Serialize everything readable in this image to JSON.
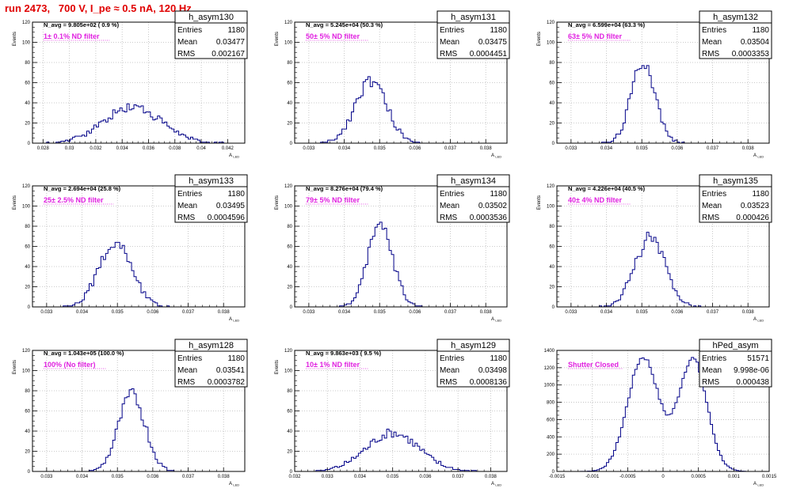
{
  "page_title": "run 2473,   700 V, I_pe ≈ 0.5 nA, 120 Hz",
  "colors": {
    "title": "#e00000",
    "histogram": "#000088",
    "annotation": "#e020e0",
    "grid": "#bbbbbb"
  },
  "chart_data": [
    {
      "type": "histogram",
      "stats": {
        "name": "h_asym130",
        "entries": "1180",
        "mean": "0.03477",
        "rms": "0.002167"
      },
      "navg": "N_avg = 9.805e+02 ( 0.9 %)",
      "filter": "1± 0.1% ND filter",
      "ylabel": "Events",
      "xlabel": "A_LED",
      "xlim": [
        0.0272,
        0.0433
      ],
      "ylim": [
        0,
        120
      ],
      "xticks": [
        0.028,
        0.03,
        0.032,
        0.034,
        0.036,
        0.038,
        0.04,
        0.042
      ],
      "xtick_labels": [
        "0.028",
        "0.03",
        "0.032",
        "0.034",
        "0.036",
        "0.038",
        "0.04",
        "0.042"
      ],
      "yticks": [
        0,
        20,
        40,
        60,
        80,
        100,
        120
      ],
      "ytick_labels": [
        "0",
        "20",
        "40",
        "60",
        "80",
        "100",
        "120"
      ],
      "peaks": [
        {
          "mu": 0.0348,
          "sigma": 0.00217,
          "amp": 36
        }
      ],
      "noise_seed": 130
    },
    {
      "type": "histogram",
      "stats": {
        "name": "h_asym131",
        "entries": "1180",
        "mean": "0.03475",
        "rms": "0.0004451"
      },
      "navg": "N_avg = 5.245e+04 (50.3 %)",
      "filter": "50± 5% ND filter",
      "ylabel": "Events",
      "xlabel": "A_LED",
      "xlim": [
        0.0326,
        0.0386
      ],
      "ylim": [
        0,
        120
      ],
      "xticks": [
        0.033,
        0.034,
        0.035,
        0.036,
        0.037,
        0.038
      ],
      "xtick_labels": [
        "0.033",
        "0.034",
        "0.035",
        "0.036",
        "0.037",
        "0.038"
      ],
      "yticks": [
        0,
        20,
        40,
        60,
        80,
        100,
        120
      ],
      "ytick_labels": [
        "0",
        "20",
        "40",
        "60",
        "80",
        "100",
        "120"
      ],
      "peaks": [
        {
          "mu": 0.03475,
          "sigma": 0.000445,
          "amp": 62
        }
      ],
      "noise_seed": 131
    },
    {
      "type": "histogram",
      "stats": {
        "name": "h_asym132",
        "entries": "1180",
        "mean": "0.03504",
        "rms": "0.0003353"
      },
      "navg": "N_avg = 6.599e+04 (63.3 %)",
      "filter": "63± 5% ND filter",
      "ylabel": "Events",
      "xlabel": "A_LED",
      "xlim": [
        0.0326,
        0.0386
      ],
      "ylim": [
        0,
        120
      ],
      "xticks": [
        0.033,
        0.034,
        0.035,
        0.036,
        0.037,
        0.038
      ],
      "xtick_labels": [
        "0.033",
        "0.034",
        "0.035",
        "0.036",
        "0.037",
        "0.038"
      ],
      "yticks": [
        0,
        20,
        40,
        60,
        80,
        100,
        120
      ],
      "ytick_labels": [
        "0",
        "20",
        "40",
        "60",
        "80",
        "100",
        "120"
      ],
      "peaks": [
        {
          "mu": 0.03504,
          "sigma": 0.000335,
          "amp": 82
        }
      ],
      "noise_seed": 132
    },
    {
      "type": "histogram",
      "stats": {
        "name": "h_asym133",
        "entries": "1180",
        "mean": "0.03495",
        "rms": "0.0004596"
      },
      "navg": "N_avg = 2.694e+04 (25.8 %)",
      "filter": "25± 2.5% ND filter",
      "ylabel": "Events",
      "xlabel": "A_LED",
      "xlim": [
        0.0326,
        0.0386
      ],
      "ylim": [
        0,
        120
      ],
      "xticks": [
        0.033,
        0.034,
        0.035,
        0.036,
        0.037,
        0.038
      ],
      "xtick_labels": [
        "0.033",
        "0.034",
        "0.035",
        "0.036",
        "0.037",
        "0.038"
      ],
      "yticks": [
        0,
        20,
        40,
        60,
        80,
        100,
        120
      ],
      "ytick_labels": [
        "0",
        "20",
        "40",
        "60",
        "80",
        "100",
        "120"
      ],
      "peaks": [
        {
          "mu": 0.03495,
          "sigma": 0.00046,
          "amp": 65
        }
      ],
      "noise_seed": 133
    },
    {
      "type": "histogram",
      "stats": {
        "name": "h_asym134",
        "entries": "1180",
        "mean": "0.03502",
        "rms": "0.0003536"
      },
      "navg": "N_avg = 8.276e+04 (79.4 %)",
      "filter": "79± 5% ND filter",
      "ylabel": "Events",
      "xlabel": "A_LED",
      "xlim": [
        0.0326,
        0.0386
      ],
      "ylim": [
        0,
        120
      ],
      "xticks": [
        0.033,
        0.034,
        0.035,
        0.036,
        0.037,
        0.038
      ],
      "xtick_labels": [
        "0.033",
        "0.034",
        "0.035",
        "0.036",
        "0.037",
        "0.038"
      ],
      "yticks": [
        0,
        20,
        40,
        60,
        80,
        100,
        120
      ],
      "ytick_labels": [
        "0",
        "20",
        "40",
        "60",
        "80",
        "100",
        "120"
      ],
      "peaks": [
        {
          "mu": 0.03502,
          "sigma": 0.000354,
          "amp": 80
        }
      ],
      "noise_seed": 134
    },
    {
      "type": "histogram",
      "stats": {
        "name": "h_asym135",
        "entries": "1180",
        "mean": "0.03523",
        "rms": "0.000426"
      },
      "navg": "N_avg = 4.226e+04 (40.5 %)",
      "filter": "40± 4% ND filter",
      "ylabel": "Events",
      "xlabel": "A_LED",
      "xlim": [
        0.0326,
        0.0386
      ],
      "ylim": [
        0,
        120
      ],
      "xticks": [
        0.033,
        0.034,
        0.035,
        0.036,
        0.037,
        0.038
      ],
      "xtick_labels": [
        "0.033",
        "0.034",
        "0.035",
        "0.036",
        "0.037",
        "0.038"
      ],
      "yticks": [
        0,
        20,
        40,
        60,
        80,
        100,
        120
      ],
      "ytick_labels": [
        "0",
        "20",
        "40",
        "60",
        "80",
        "100",
        "120"
      ],
      "peaks": [
        {
          "mu": 0.03523,
          "sigma": 0.000426,
          "amp": 68
        }
      ],
      "noise_seed": 135
    },
    {
      "type": "histogram",
      "stats": {
        "name": "h_asym128",
        "entries": "1180",
        "mean": "0.03541",
        "rms": "0.0003782"
      },
      "navg": "N_avg = 1.043e+05 (100.0 %)",
      "filter": "100% (No filter)",
      "ylabel": "Events",
      "xlabel": "A_LED",
      "xlim": [
        0.0326,
        0.0386
      ],
      "ylim": [
        0,
        120
      ],
      "xticks": [
        0.033,
        0.034,
        0.035,
        0.036,
        0.037,
        0.038
      ],
      "xtick_labels": [
        "0.033",
        "0.034",
        "0.035",
        "0.036",
        "0.037",
        "0.038"
      ],
      "yticks": [
        0,
        20,
        40,
        60,
        80,
        100,
        120
      ],
      "ytick_labels": [
        "0",
        "20",
        "40",
        "60",
        "80",
        "100",
        "120"
      ],
      "peaks": [
        {
          "mu": 0.03541,
          "sigma": 0.000378,
          "amp": 76
        }
      ],
      "noise_seed": 128
    },
    {
      "type": "histogram",
      "stats": {
        "name": "h_asym129",
        "entries": "1180",
        "mean": "0.03498",
        "rms": "0.0008136"
      },
      "navg": "N_avg = 9.863e+03 ( 9.5 %)",
      "filter": "10± 1% ND filter",
      "ylabel": "Events",
      "xlabel": "A_LED",
      "xlim": [
        0.032,
        0.0385
      ],
      "ylim": [
        0,
        120
      ],
      "xticks": [
        0.032,
        0.033,
        0.034,
        0.035,
        0.036,
        0.037,
        0.038
      ],
      "xtick_labels": [
        "0.032",
        "0.033",
        "0.034",
        "0.035",
        "0.036",
        "0.037",
        "0.038"
      ],
      "yticks": [
        0,
        20,
        40,
        60,
        80,
        100,
        120
      ],
      "ytick_labels": [
        "0",
        "20",
        "40",
        "60",
        "80",
        "100",
        "120"
      ],
      "peaks": [
        {
          "mu": 0.035,
          "sigma": 0.00081,
          "amp": 38
        }
      ],
      "noise_seed": 129
    },
    {
      "type": "histogram",
      "stats": {
        "name": "hPed_asym",
        "entries": "51571",
        "mean": "9.998e-06",
        "rms": "0.000438"
      },
      "navg": "",
      "filter": "Shutter Closed",
      "ylabel": "",
      "xlabel": "A_LED",
      "xlim": [
        -0.0015,
        0.0015
      ],
      "ylim": [
        0,
        1400
      ],
      "xticks": [
        -0.0015,
        -0.001,
        -0.0005,
        0,
        0.0005,
        0.001,
        0.0015
      ],
      "xtick_labels": [
        "-0.0015",
        "-0.001",
        "-0.0005",
        "0",
        "0.0005",
        "0.001",
        "0.0015"
      ],
      "yticks": [
        0,
        200,
        400,
        600,
        800,
        1000,
        1200,
        1400
      ],
      "ytick_labels": [
        "0",
        "200",
        "400",
        "600",
        "800",
        "1000",
        "1200",
        "1400"
      ],
      "peaks": [
        {
          "mu": -0.00028,
          "sigma": 0.00022,
          "amp": 1320
        },
        {
          "mu": 0.00042,
          "sigma": 0.0002,
          "amp": 1300
        }
      ],
      "noise_seed": 7
    }
  ]
}
